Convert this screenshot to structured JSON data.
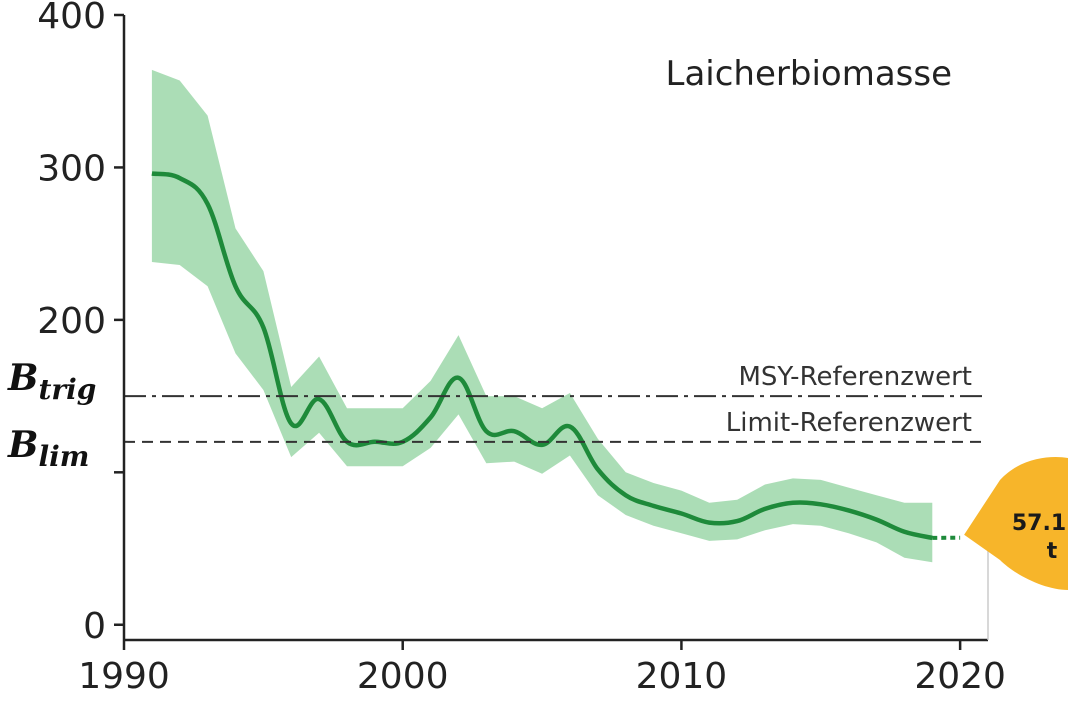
{
  "chart_data": {
    "type": "line",
    "title": "Laicherbiomasse",
    "xlim": [
      1990,
      2021
    ],
    "ylim": [
      -10,
      400
    ],
    "x_ticks": [
      1990,
      2000,
      2010,
      2020
    ],
    "y_ticks": [
      0,
      100,
      200,
      300,
      400
    ],
    "y_tick_labels": [
      "0",
      "",
      "200",
      "300",
      "400"
    ],
    "grid": false,
    "series": [
      {
        "color": "#1e8a3a",
        "band_color": "#8fd19e",
        "x": [
          1991,
          1992,
          1993,
          1994,
          1995,
          1996,
          1997,
          1998,
          1999,
          2000,
          2001,
          2002,
          2003,
          2004,
          2005,
          2006,
          2007,
          2008,
          2009,
          2010,
          2011,
          2012,
          2013,
          2014,
          2015,
          2016,
          2017,
          2018,
          2019
        ],
        "y": [
          296,
          293,
          276,
          222,
          195,
          132,
          148,
          120,
          120,
          120,
          136,
          162,
          127,
          127,
          118,
          130,
          102,
          85,
          78,
          73,
          67,
          68,
          76,
          80,
          79,
          75,
          69,
          61,
          57
        ],
        "lower": [
          238,
          236,
          222,
          178,
          154,
          110,
          126,
          104,
          104,
          104,
          116,
          138,
          106,
          107,
          99,
          111,
          85,
          72,
          65,
          60,
          55,
          56,
          62,
          66,
          65,
          60,
          54,
          44,
          41
        ],
        "upper": [
          364,
          357,
          334,
          260,
          232,
          156,
          176,
          142,
          142,
          142,
          160,
          190,
          150,
          150,
          142,
          152,
          122,
          100,
          93,
          88,
          80,
          82,
          92,
          96,
          95,
          90,
          85,
          80,
          80
        ]
      }
    ],
    "projection": {
      "x": [
        2019,
        2020
      ],
      "y": [
        57,
        57.1
      ]
    },
    "reference_lines": [
      {
        "label": "MSY-Referenzwert",
        "symbol": "B",
        "subscript": "trig",
        "value": 150,
        "style": "dashdot"
      },
      {
        "label": "Limit-Referenzwert",
        "symbol": "B",
        "subscript": "lim",
        "value": 120,
        "style": "dashed"
      }
    ],
    "annotation": {
      "value": "57.1",
      "unit": "t",
      "color": "#f7b52a"
    }
  }
}
